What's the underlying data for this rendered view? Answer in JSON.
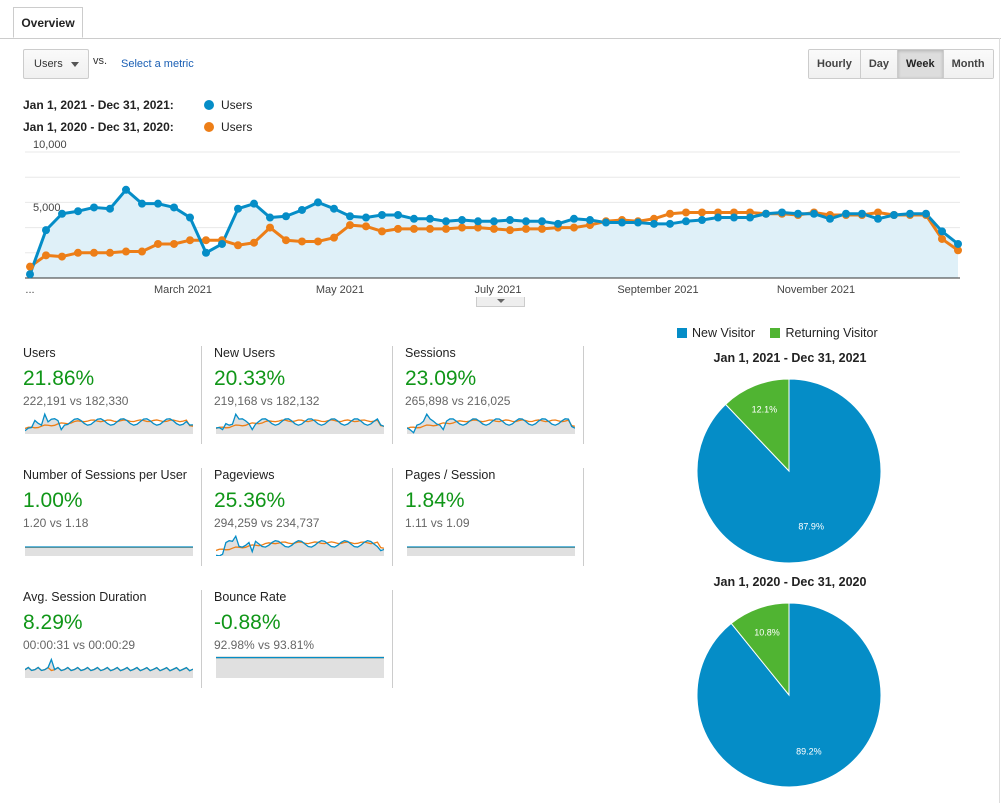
{
  "tabs": [
    {
      "label": "Overview"
    }
  ],
  "controls": {
    "metric_select": "Users",
    "vs_label": "vs.",
    "select_metric_link": "Select a metric",
    "granularity": [
      {
        "label": "Hourly",
        "active": false
      },
      {
        "label": "Day",
        "active": false
      },
      {
        "label": "Week",
        "active": true
      },
      {
        "label": "Month",
        "active": false
      }
    ]
  },
  "legend": [
    {
      "range": "Jan 1, 2021 - Dec 31, 2021:",
      "series": "Users",
      "color": "#058dc7"
    },
    {
      "range": "Jan 1, 2020 - Dec 31, 2020:",
      "series": "Users",
      "color": "#ed7e17"
    }
  ],
  "chart_data": {
    "type": "line",
    "y_ticks": [
      "10,000",
      "5,000"
    ],
    "ylim": [
      0,
      10000
    ],
    "x_tick_labels": [
      "...",
      "March 2021",
      "May 2021",
      "July 2021",
      "September 2021",
      "November 2021"
    ],
    "area_fill": true,
    "series": [
      {
        "name": "Users",
        "period": "Jan 1, 2021 - Dec 31, 2021",
        "color": "#058dc7",
        "values": [
          300,
          3800,
          5100,
          5300,
          5600,
          5500,
          7000,
          5900,
          5900,
          5600,
          4800,
          2000,
          2700,
          5500,
          5900,
          4800,
          4900,
          5400,
          6000,
          5500,
          4900,
          4800,
          5000,
          5000,
          4700,
          4700,
          4500,
          4600,
          4500,
          4500,
          4600,
          4500,
          4500,
          4300,
          4700,
          4600,
          4400,
          4400,
          4400,
          4300,
          4300,
          4500,
          4600,
          4800,
          4800,
          4800,
          5100,
          5200,
          5100,
          5100,
          4700,
          5100,
          5100,
          4700,
          5000,
          5100,
          5100,
          3700,
          2700
        ]
      },
      {
        "name": "Users",
        "period": "Jan 1, 2020 - Dec 31, 2020",
        "color": "#ed7e17",
        "values": [
          900,
          1800,
          1700,
          2000,
          2000,
          2000,
          2100,
          2100,
          2700,
          2700,
          3000,
          3000,
          3000,
          2600,
          2800,
          4000,
          3000,
          2900,
          2900,
          3200,
          4200,
          4100,
          3700,
          3900,
          3900,
          3900,
          3900,
          4000,
          4000,
          3900,
          3800,
          3900,
          3900,
          4000,
          4000,
          4200,
          4500,
          4600,
          4500,
          4700,
          5100,
          5200,
          5200,
          5200,
          5200,
          5200,
          5100,
          5100,
          5000,
          5200,
          5000,
          5000,
          5000,
          5200,
          5000,
          5000,
          5000,
          3100,
          2200
        ]
      }
    ]
  },
  "metrics": [
    {
      "name": "Users",
      "change": "21.86%",
      "compare": "222,191 vs 182,330",
      "spark": "wave"
    },
    {
      "name": "New Users",
      "change": "20.33%",
      "compare": "219,168 vs 182,132",
      "spark": "wave"
    },
    {
      "name": "Sessions",
      "change": "23.09%",
      "compare": "265,898 vs 216,025",
      "spark": "wave"
    },
    {
      "name": "Number of Sessions per User",
      "change": "1.00%",
      "compare": "1.20 vs 1.18",
      "spark": "flat"
    },
    {
      "name": "Pageviews",
      "change": "25.36%",
      "compare": "294,259 vs 234,737",
      "spark": "wave"
    },
    {
      "name": "Pages / Session",
      "change": "1.84%",
      "compare": "1.11 vs 1.09",
      "spark": "flat"
    },
    {
      "name": "Avg. Session Duration",
      "change": "8.29%",
      "compare": "00:00:31 vs 00:00:29",
      "spark": "spiky"
    },
    {
      "name": "Bounce Rate",
      "change": "-0.88%",
      "compare": "92.98% vs 93.81%",
      "spark": "flat-high"
    }
  ],
  "pies": {
    "legend": [
      {
        "label": "New Visitor",
        "color": "#058dc7"
      },
      {
        "label": "Returning Visitor",
        "color": "#50b432"
      }
    ],
    "charts": [
      {
        "title": "Jan 1, 2021 - Dec 31, 2021",
        "new_pct": 87.9,
        "ret_pct": 12.1,
        "new_label": "87.9%",
        "ret_label": "12.1%"
      },
      {
        "title": "Jan 1, 2020 - Dec 31, 2020",
        "new_pct": 89.2,
        "ret_pct": 10.8,
        "new_label": "89.2%",
        "ret_label": "10.8%"
      }
    ]
  }
}
